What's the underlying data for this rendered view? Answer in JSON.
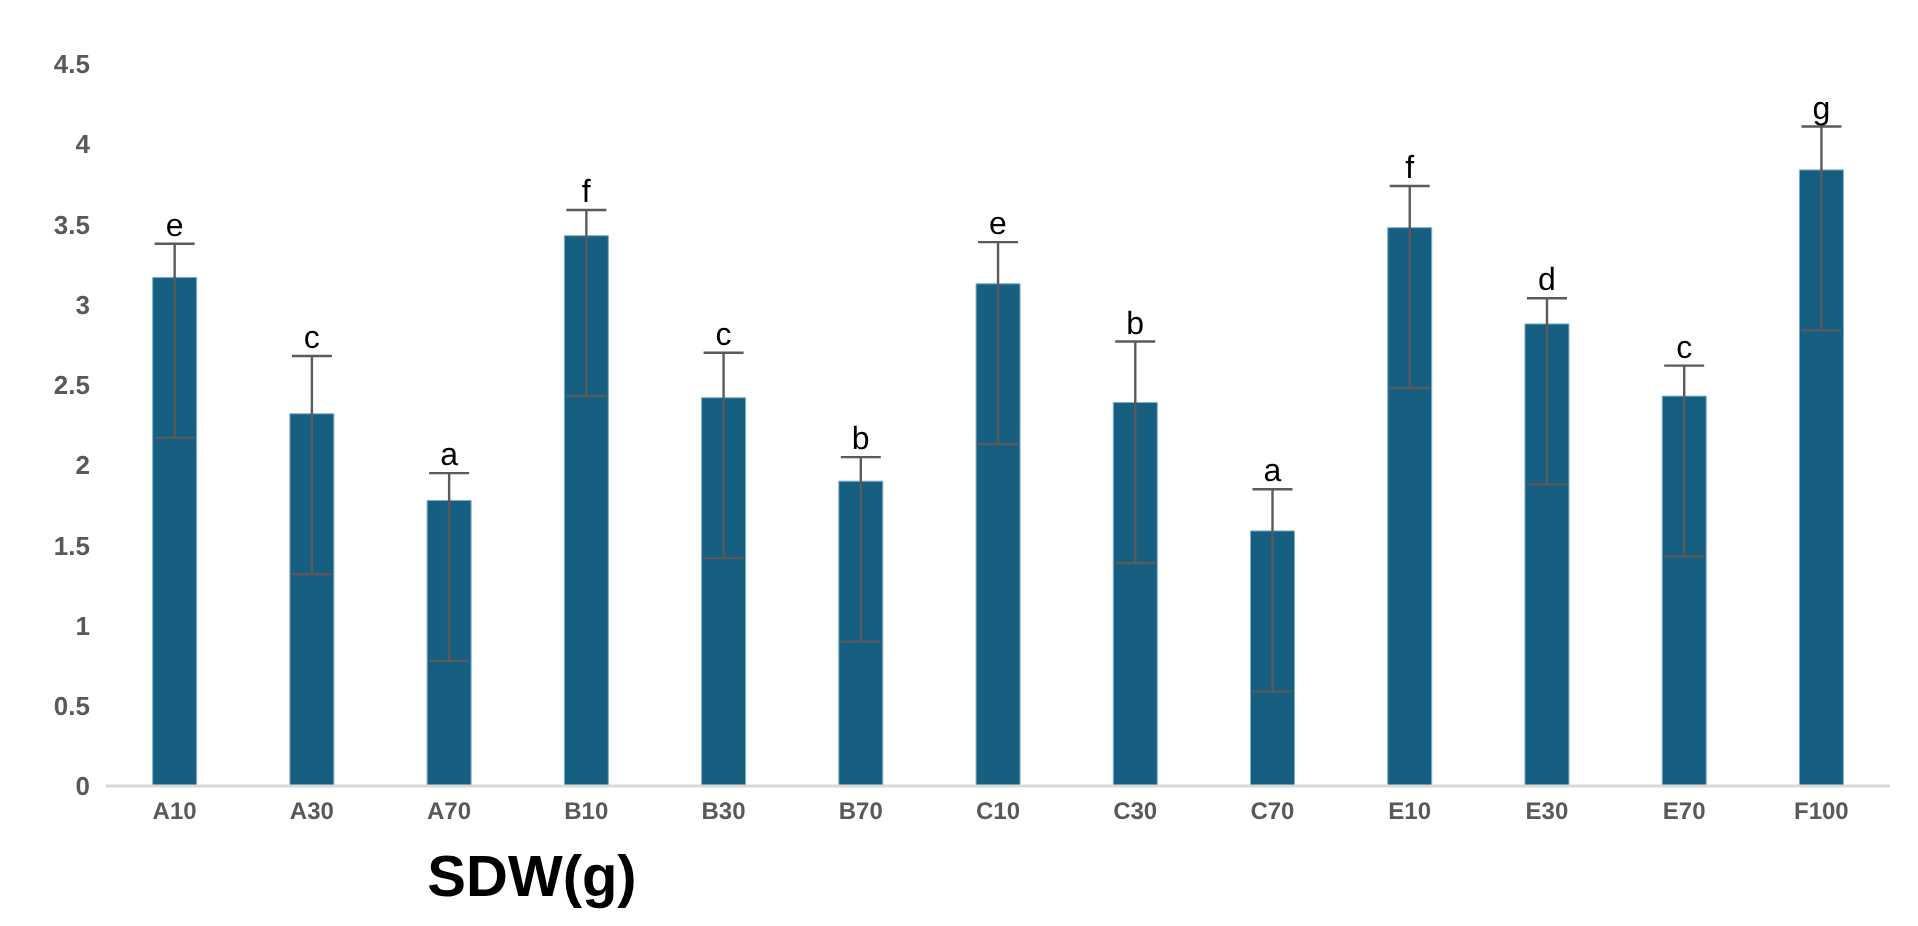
{
  "chart_data": {
    "type": "bar",
    "xlabel": "SDW(g)",
    "categories": [
      "A10",
      "A30",
      "A70",
      "B10",
      "B30",
      "B70",
      "C10",
      "C30",
      "C70",
      "E10",
      "E30",
      "E70",
      "F100"
    ],
    "values": [
      3.17,
      2.32,
      1.78,
      3.43,
      2.42,
      1.9,
      3.13,
      2.39,
      1.59,
      3.48,
      2.88,
      2.43,
      3.84
    ],
    "errors": [
      [
        2.17,
        3.38
      ],
      [
        1.32,
        2.68
      ],
      [
        0.78,
        1.95
      ],
      [
        2.43,
        3.59
      ],
      [
        1.42,
        2.7
      ],
      [
        0.9,
        2.05
      ],
      [
        2.13,
        3.39
      ],
      [
        1.39,
        2.77
      ],
      [
        0.59,
        1.85
      ],
      [
        2.48,
        3.74
      ],
      [
        1.88,
        3.04
      ],
      [
        1.43,
        2.62
      ],
      [
        2.84,
        4.11
      ]
    ],
    "color": "#175f80",
    "ylim": [
      0,
      4.5
    ],
    "yticks": [
      0,
      0.5,
      1,
      1.5,
      2,
      2.5,
      3,
      3.5,
      4,
      4.5
    ],
    "grid": false,
    "legend": false,
    "annotations": [
      {
        "text": "e",
        "x": "A10",
        "y": 3.38
      },
      {
        "text": "c",
        "x": "A30",
        "y": 2.68
      },
      {
        "text": "a",
        "x": "A70",
        "y": 1.95
      },
      {
        "text": "f",
        "x": "B10",
        "y": 3.59
      },
      {
        "text": "c",
        "x": "B30",
        "y": 2.7
      },
      {
        "text": "b",
        "x": "B70",
        "y": 2.05
      },
      {
        "text": "e",
        "x": "C10",
        "y": 3.39
      },
      {
        "text": "b",
        "x": "C30",
        "y": 2.77
      },
      {
        "text": "a",
        "x": "C70",
        "y": 1.85
      },
      {
        "text": "f",
        "x": "E10",
        "y": 3.74
      },
      {
        "text": "d",
        "x": "E30",
        "y": 3.04
      },
      {
        "text": "c",
        "x": "E70",
        "y": 2.62
      },
      {
        "text": "g",
        "x": "F100",
        "y": 4.11
      }
    ]
  }
}
